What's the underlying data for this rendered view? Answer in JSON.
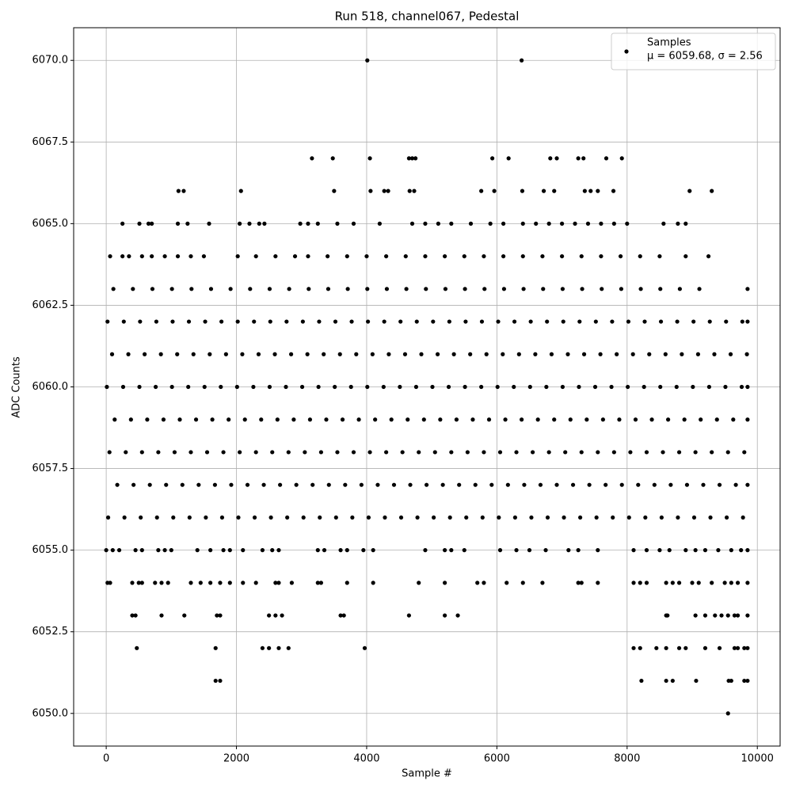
{
  "chart_data": {
    "type": "scatter",
    "title": "Run 518, channel067, Pedestal",
    "x_label": "Sample #",
    "y_label": "ADC Counts",
    "xlim": [
      -500,
      10350
    ],
    "ylim": [
      6049,
      6071
    ],
    "xticks": [
      0,
      2000,
      4000,
      6000,
      8000,
      10000
    ],
    "yticks": [
      {
        "value": 6050,
        "label": "6050.0"
      },
      6052.5,
      {
        "value": 6055,
        "label": "6055.0"
      },
      6057.5,
      {
        "value": 6060,
        "label": "6060.0"
      },
      6062.5,
      {
        "value": 6065,
        "label": "6065.0"
      },
      6067.5,
      {
        "value": 6070,
        "label": "6070.0"
      }
    ],
    "grid": true,
    "legend": "upper right",
    "annotation": "μ = 6059.68, σ = 2.56",
    "series": [
      {
        "name": "Samples",
        "color": "#000000",
        "x": [
          4010,
          6380,
          3160,
          3480,
          4050,
          4650,
          4700,
          4750,
          5930,
          6180,
          6820,
          6920,
          7250,
          7330,
          7680,
          7920,
          1110,
          1190,
          2070,
          3500,
          4060,
          4270,
          4330,
          4660,
          4730,
          5760,
          5960,
          6390,
          6720,
          6880,
          7350,
          7440,
          7550,
          7790,
          8960,
          9300,
          250,
          510,
          650,
          700,
          1100,
          1250,
          1580,
          2050,
          2200,
          2350,
          2430,
          2980,
          3100,
          3250,
          3550,
          3800,
          4200,
          4700,
          4900,
          5100,
          5300,
          5600,
          5900,
          6100,
          6400,
          6600,
          6800,
          7000,
          7200,
          7400,
          7600,
          7800,
          8000,
          8560,
          8780,
          8900,
          60,
          250,
          350,
          550,
          700,
          900,
          1100,
          1300,
          1500,
          2020,
          2300,
          2600,
          2900,
          3100,
          3400,
          3700,
          4000,
          4300,
          4600,
          4900,
          5200,
          5500,
          5800,
          6100,
          6400,
          6700,
          7000,
          7300,
          7600,
          7900,
          8200,
          8500,
          8900,
          9250,
          110,
          410,
          710,
          1010,
          1310,
          1610,
          1910,
          2210,
          2510,
          2810,
          3110,
          3410,
          3710,
          4010,
          4310,
          4610,
          4910,
          5210,
          5510,
          5810,
          6110,
          6410,
          6710,
          7010,
          7310,
          7610,
          7910,
          8210,
          8510,
          8810,
          9110,
          9850,
          20,
          270,
          520,
          770,
          1020,
          1270,
          1520,
          1770,
          2020,
          2270,
          2520,
          2770,
          3020,
          3270,
          3520,
          3770,
          4020,
          4270,
          4520,
          4770,
          5020,
          5270,
          5520,
          5770,
          6020,
          6270,
          6520,
          6770,
          7020,
          7270,
          7520,
          7770,
          8020,
          8270,
          8520,
          8770,
          9020,
          9270,
          9520,
          9770,
          9850,
          90,
          340,
          590,
          840,
          1090,
          1340,
          1590,
          1840,
          2090,
          2340,
          2590,
          2840,
          3090,
          3340,
          3590,
          3840,
          4090,
          4340,
          4590,
          4840,
          5090,
          5340,
          5590,
          5840,
          6090,
          6340,
          6590,
          6840,
          7090,
          7340,
          7590,
          7840,
          8090,
          8340,
          8590,
          8840,
          9090,
          9340,
          9590,
          9840,
          10,
          260,
          510,
          760,
          1010,
          1260,
          1510,
          1760,
          2010,
          2260,
          2510,
          2760,
          3010,
          3260,
          3510,
          3760,
          4010,
          4260,
          4510,
          4760,
          5010,
          5260,
          5510,
          5760,
          6010,
          6260,
          6510,
          6760,
          7010,
          7260,
          7510,
          7760,
          8010,
          8260,
          8510,
          8760,
          9010,
          9260,
          9510,
          9760,
          9850,
          130,
          380,
          630,
          880,
          1130,
          1380,
          1630,
          1880,
          2130,
          2380,
          2630,
          2880,
          3130,
          3380,
          3630,
          3880,
          4130,
          4380,
          4630,
          4880,
          5130,
          5380,
          5630,
          5880,
          6130,
          6380,
          6630,
          6880,
          7130,
          7380,
          7630,
          7880,
          8130,
          8380,
          8630,
          8880,
          9130,
          9380,
          9630,
          9850,
          50,
          300,
          550,
          800,
          1050,
          1300,
          1550,
          1800,
          2050,
          2300,
          2550,
          2800,
          3050,
          3300,
          3550,
          3800,
          4050,
          4300,
          4550,
          4800,
          5050,
          5300,
          5550,
          5800,
          6050,
          6300,
          6550,
          6800,
          7050,
          7300,
          7550,
          7800,
          8050,
          8300,
          8550,
          8800,
          9050,
          9300,
          9550,
          9800,
          170,
          420,
          670,
          920,
          1170,
          1420,
          1670,
          1920,
          2170,
          2420,
          2670,
          2920,
          3170,
          3420,
          3670,
          3920,
          4170,
          4420,
          4670,
          4920,
          5170,
          5420,
          5670,
          5920,
          6170,
          6420,
          6670,
          6920,
          7170,
          7420,
          7670,
          7920,
          8170,
          8420,
          8670,
          8920,
          9170,
          9420,
          9670,
          9850,
          30,
          280,
          530,
          780,
          1030,
          1280,
          1530,
          1780,
          2030,
          2280,
          2530,
          2780,
          3030,
          3280,
          3530,
          3780,
          4030,
          4280,
          4530,
          4780,
          5030,
          5280,
          5530,
          5780,
          6030,
          6280,
          6530,
          6780,
          7030,
          7280,
          7530,
          7780,
          8030,
          8280,
          8530,
          8780,
          9030,
          9280,
          9530,
          9780,
          0,
          100,
          200,
          450,
          550,
          800,
          900,
          1000,
          1400,
          1600,
          1800,
          1900,
          2100,
          2400,
          2550,
          2650,
          3250,
          3350,
          3600,
          3700,
          3950,
          4100,
          4900,
          5200,
          5300,
          5500,
          6050,
          6300,
          6500,
          6750,
          7100,
          7250,
          7550,
          8100,
          8300,
          8500,
          8650,
          8900,
          9050,
          9200,
          9400,
          9600,
          9750,
          9850,
          20,
          60,
          400,
          500,
          550,
          750,
          850,
          950,
          1300,
          1450,
          1600,
          1750,
          1900,
          2100,
          2300,
          2600,
          2650,
          2850,
          3250,
          3300,
          3700,
          4100,
          4800,
          5200,
          5700,
          5800,
          6150,
          6400,
          6700,
          7250,
          7300,
          7550,
          8100,
          8200,
          8300,
          8600,
          8700,
          8800,
          9000,
          9100,
          9300,
          9500,
          9600,
          9700,
          9850,
          400,
          450,
          850,
          1200,
          1700,
          1750,
          2500,
          2600,
          2700,
          3600,
          3650,
          4650,
          5200,
          5400,
          8600,
          8620,
          9050,
          9200,
          9350,
          9450,
          9550,
          9650,
          9700,
          9850,
          470,
          1680,
          2400,
          2500,
          2650,
          2800,
          3970,
          8100,
          8200,
          8450,
          8600,
          8800,
          8900,
          9200,
          9420,
          9650,
          9700,
          9800,
          9850,
          1680,
          1750,
          8220,
          8600,
          8700,
          9060,
          9560,
          9600,
          9800,
          9850,
          9550
        ],
        "values": [
          6070,
          6070,
          6067,
          6067,
          6067,
          6067,
          6067,
          6067,
          6067,
          6067,
          6067,
          6067,
          6067,
          6067,
          6067,
          6067,
          6066,
          6066,
          6066,
          6066,
          6066,
          6066,
          6066,
          6066,
          6066,
          6066,
          6066,
          6066,
          6066,
          6066,
          6066,
          6066,
          6066,
          6066,
          6066,
          6066,
          6065,
          6065,
          6065,
          6065,
          6065,
          6065,
          6065,
          6065,
          6065,
          6065,
          6065,
          6065,
          6065,
          6065,
          6065,
          6065,
          6065,
          6065,
          6065,
          6065,
          6065,
          6065,
          6065,
          6065,
          6065,
          6065,
          6065,
          6065,
          6065,
          6065,
          6065,
          6065,
          6065,
          6065,
          6065,
          6065,
          6064,
          6064,
          6064,
          6064,
          6064,
          6064,
          6064,
          6064,
          6064,
          6064,
          6064,
          6064,
          6064,
          6064,
          6064,
          6064,
          6064,
          6064,
          6064,
          6064,
          6064,
          6064,
          6064,
          6064,
          6064,
          6064,
          6064,
          6064,
          6064,
          6064,
          6064,
          6064,
          6064,
          6064,
          6063,
          6063,
          6063,
          6063,
          6063,
          6063,
          6063,
          6063,
          6063,
          6063,
          6063,
          6063,
          6063,
          6063,
          6063,
          6063,
          6063,
          6063,
          6063,
          6063,
          6063,
          6063,
          6063,
          6063,
          6063,
          6063,
          6063,
          6063,
          6063,
          6063,
          6063,
          6063,
          6062,
          6062,
          6062,
          6062,
          6062,
          6062,
          6062,
          6062,
          6062,
          6062,
          6062,
          6062,
          6062,
          6062,
          6062,
          6062,
          6062,
          6062,
          6062,
          6062,
          6062,
          6062,
          6062,
          6062,
          6062,
          6062,
          6062,
          6062,
          6062,
          6062,
          6062,
          6062,
          6062,
          6062,
          6062,
          6062,
          6062,
          6062,
          6062,
          6062,
          6062,
          6061,
          6061,
          6061,
          6061,
          6061,
          6061,
          6061,
          6061,
          6061,
          6061,
          6061,
          6061,
          6061,
          6061,
          6061,
          6061,
          6061,
          6061,
          6061,
          6061,
          6061,
          6061,
          6061,
          6061,
          6061,
          6061,
          6061,
          6061,
          6061,
          6061,
          6061,
          6061,
          6061,
          6061,
          6061,
          6061,
          6061,
          6061,
          6061,
          6061,
          6060,
          6060,
          6060,
          6060,
          6060,
          6060,
          6060,
          6060,
          6060,
          6060,
          6060,
          6060,
          6060,
          6060,
          6060,
          6060,
          6060,
          6060,
          6060,
          6060,
          6060,
          6060,
          6060,
          6060,
          6060,
          6060,
          6060,
          6060,
          6060,
          6060,
          6060,
          6060,
          6060,
          6060,
          6060,
          6060,
          6060,
          6060,
          6060,
          6060,
          6060,
          6059,
          6059,
          6059,
          6059,
          6059,
          6059,
          6059,
          6059,
          6059,
          6059,
          6059,
          6059,
          6059,
          6059,
          6059,
          6059,
          6059,
          6059,
          6059,
          6059,
          6059,
          6059,
          6059,
          6059,
          6059,
          6059,
          6059,
          6059,
          6059,
          6059,
          6059,
          6059,
          6059,
          6059,
          6059,
          6059,
          6059,
          6059,
          6059,
          6059,
          6058,
          6058,
          6058,
          6058,
          6058,
          6058,
          6058,
          6058,
          6058,
          6058,
          6058,
          6058,
          6058,
          6058,
          6058,
          6058,
          6058,
          6058,
          6058,
          6058,
          6058,
          6058,
          6058,
          6058,
          6058,
          6058,
          6058,
          6058,
          6058,
          6058,
          6058,
          6058,
          6058,
          6058,
          6058,
          6058,
          6058,
          6058,
          6058,
          6058,
          6057,
          6057,
          6057,
          6057,
          6057,
          6057,
          6057,
          6057,
          6057,
          6057,
          6057,
          6057,
          6057,
          6057,
          6057,
          6057,
          6057,
          6057,
          6057,
          6057,
          6057,
          6057,
          6057,
          6057,
          6057,
          6057,
          6057,
          6057,
          6057,
          6057,
          6057,
          6057,
          6057,
          6057,
          6057,
          6057,
          6057,
          6057,
          6057,
          6057,
          6056,
          6056,
          6056,
          6056,
          6056,
          6056,
          6056,
          6056,
          6056,
          6056,
          6056,
          6056,
          6056,
          6056,
          6056,
          6056,
          6056,
          6056,
          6056,
          6056,
          6056,
          6056,
          6056,
          6056,
          6056,
          6056,
          6056,
          6056,
          6056,
          6056,
          6056,
          6056,
          6056,
          6056,
          6056,
          6056,
          6056,
          6056,
          6056,
          6056,
          6055,
          6055,
          6055,
          6055,
          6055,
          6055,
          6055,
          6055,
          6055,
          6055,
          6055,
          6055,
          6055,
          6055,
          6055,
          6055,
          6055,
          6055,
          6055,
          6055,
          6055,
          6055,
          6055,
          6055,
          6055,
          6055,
          6055,
          6055,
          6055,
          6055,
          6055,
          6055,
          6055,
          6055,
          6055,
          6055,
          6055,
          6055,
          6055,
          6055,
          6055,
          6055,
          6055,
          6055,
          6054,
          6054,
          6054,
          6054,
          6054,
          6054,
          6054,
          6054,
          6054,
          6054,
          6054,
          6054,
          6054,
          6054,
          6054,
          6054,
          6054,
          6054,
          6054,
          6054,
          6054,
          6054,
          6054,
          6054,
          6054,
          6054,
          6054,
          6054,
          6054,
          6054,
          6054,
          6054,
          6054,
          6054,
          6054,
          6054,
          6054,
          6054,
          6054,
          6054,
          6054,
          6054,
          6054,
          6054,
          6054,
          6053,
          6053,
          6053,
          6053,
          6053,
          6053,
          6053,
          6053,
          6053,
          6053,
          6053,
          6053,
          6053,
          6053,
          6053,
          6053,
          6053,
          6053,
          6053,
          6053,
          6053,
          6053,
          6053,
          6053,
          6052,
          6052,
          6052,
          6052,
          6052,
          6052,
          6052,
          6052,
          6052,
          6052,
          6052,
          6052,
          6052,
          6052,
          6052,
          6052,
          6052,
          6052,
          6052,
          6051,
          6051,
          6051,
          6051,
          6051,
          6051,
          6051,
          6051,
          6051,
          6051,
          6050
        ]
      }
    ]
  }
}
